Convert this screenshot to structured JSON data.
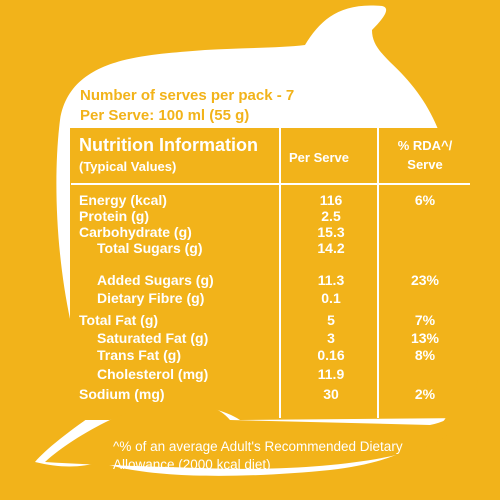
{
  "serves": {
    "line1": "Number of serves per pack - 7",
    "line2": "Per Serve: 100 ml (55 g)"
  },
  "header": {
    "title": "Nutrition Information",
    "subtitle": "(Typical Values)",
    "per_serve": "Per Serve",
    "rda_line1": "% RDA^/",
    "rda_line2": "Serve"
  },
  "rows": [
    {
      "name": "Energy (kcal)",
      "value": "116",
      "rda": "6%"
    },
    {
      "name": "Protein (g)",
      "value": "2.5",
      "rda": ""
    },
    {
      "name": "Carbohydrate (g)",
      "value": "15.3",
      "rda": ""
    },
    {
      "name": "Total Sugars (g)",
      "value": "14.2",
      "rda": ""
    },
    {
      "name": "Added Sugars (g)",
      "value": "11.3",
      "rda": "23%"
    },
    {
      "name": "Dietary Fibre (g)",
      "value": "0.1",
      "rda": ""
    },
    {
      "name": "Total Fat (g)",
      "value": "5",
      "rda": "7%"
    },
    {
      "name": "Saturated Fat (g)",
      "value": "3",
      "rda": "13%"
    },
    {
      "name": "Trans Fat (g)",
      "value": "0.16",
      "rda": "8%"
    },
    {
      "name": "Cholesterol (mg)",
      "value": "11.9",
      "rda": ""
    },
    {
      "name": "Sodium (mg)",
      "value": "30",
      "rda": "2%"
    }
  ],
  "footnote": {
    "line1": "^% of an average Adult's Recommended Dietary",
    "line2": "Allowance (2000 kcal diet)"
  },
  "colors": {
    "background": "#F2B31A",
    "label_text": "#ffffff"
  }
}
